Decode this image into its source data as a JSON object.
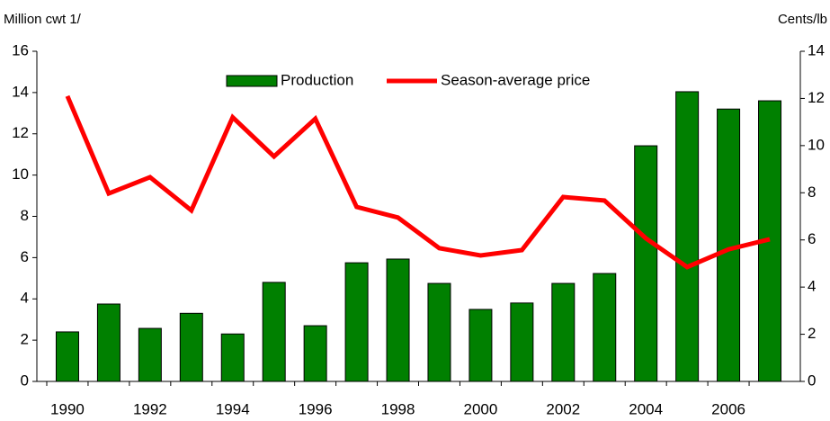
{
  "chart_data": {
    "type": "bar",
    "y_label": "Million cwt 1/",
    "y2_label": "Cents/lb",
    "categories": [
      "1990",
      null,
      "1992",
      null,
      "1994",
      null,
      "1996",
      null,
      "1998",
      null,
      "2000",
      null,
      "2002",
      null,
      "2004",
      null,
      "2006",
      null
    ],
    "series": [
      {
        "name": "Production",
        "type": "bar",
        "color": "#008000",
        "values": [
          2.4,
          3.75,
          2.57,
          3.3,
          2.3,
          4.8,
          2.7,
          5.75,
          5.93,
          4.75,
          3.49,
          3.8,
          4.75,
          5.23,
          11.42,
          14.04,
          13.2,
          13.6
        ]
      },
      {
        "name": "Season-average price",
        "type": "line",
        "axis": "y2",
        "color": "#ff0000",
        "values": [
          12.1,
          7.97,
          8.66,
          7.25,
          11.2,
          9.54,
          11.14,
          7.4,
          6.95,
          5.65,
          5.34,
          5.57,
          7.82,
          7.67,
          6.07,
          4.85,
          5.6,
          6.03
        ]
      }
    ],
    "ylim": [
      0,
      16
    ],
    "yticks": [
      0,
      2,
      4,
      6,
      8,
      10,
      12,
      14,
      16
    ],
    "y2lim": [
      0,
      14
    ],
    "y2ticks": [
      0,
      2,
      4,
      6,
      8,
      10,
      12,
      14
    ],
    "legend": "top"
  }
}
